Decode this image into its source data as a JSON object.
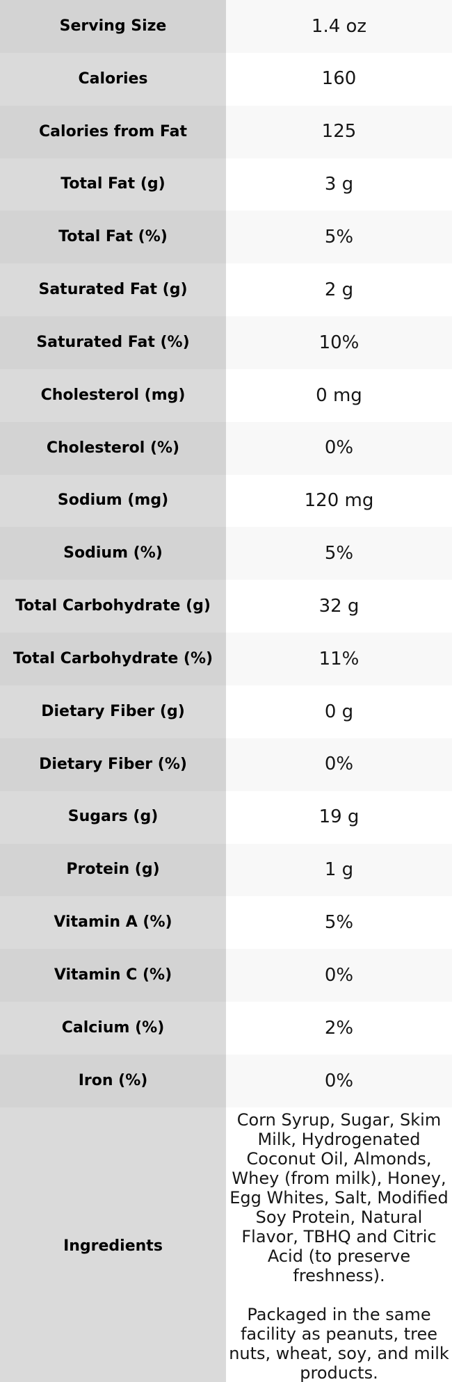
{
  "colors": {
    "label_cell_striped": "#d3d3d3",
    "label_cell_plain": "#dadada",
    "value_cell_striped": "#f8f8f8",
    "value_cell_plain": "#ffffff",
    "text": "#101010"
  },
  "chart_data": {
    "type": "table",
    "title": "",
    "columns": [
      "label",
      "value"
    ],
    "striped": true,
    "legend_position": "none",
    "rows": [
      {
        "label": "Serving Size",
        "value": "1.4 oz"
      },
      {
        "label": "Calories",
        "value": "160"
      },
      {
        "label": "Calories from Fat",
        "value": "125"
      },
      {
        "label": "Total Fat (g)",
        "value": "3 g"
      },
      {
        "label": "Total Fat (%)",
        "value": "5%"
      },
      {
        "label": "Saturated Fat (g)",
        "value": "2 g"
      },
      {
        "label": "Saturated Fat (%)",
        "value": "10%"
      },
      {
        "label": "Cholesterol (mg)",
        "value": "0 mg"
      },
      {
        "label": "Cholesterol (%)",
        "value": "0%"
      },
      {
        "label": "Sodium (mg)",
        "value": "120 mg"
      },
      {
        "label": "Sodium (%)",
        "value": "5%"
      },
      {
        "label": "Total Carbohydrate (g)",
        "value": "32 g"
      },
      {
        "label": "Total Carbohydrate (%)",
        "value": "11%"
      },
      {
        "label": "Dietary Fiber (g)",
        "value": "0 g"
      },
      {
        "label": "Dietary Fiber (%)",
        "value": "0%"
      },
      {
        "label": "Sugars (g)",
        "value": "19 g"
      },
      {
        "label": "Protein (g)",
        "value": "1 g"
      },
      {
        "label": "Vitamin A (%)",
        "value": "5%"
      },
      {
        "label": "Vitamin C (%)",
        "value": "0%"
      },
      {
        "label": "Calcium (%)",
        "value": "2%"
      },
      {
        "label": "Iron (%)",
        "value": "0%"
      }
    ],
    "ingredients_row": {
      "label": "Ingredients",
      "paragraphs": [
        "Corn Syrup, Sugar, Skim Milk, Hydrogenated Coconut Oil, Almonds, Whey (from milk), Honey, Egg Whites, Salt, Modified Soy Protein, Natural Flavor, TBHQ and Citric Acid (to preserve freshness).",
        "Packaged in the same facility as peanuts, tree nuts, wheat, soy, and milk products."
      ]
    }
  }
}
